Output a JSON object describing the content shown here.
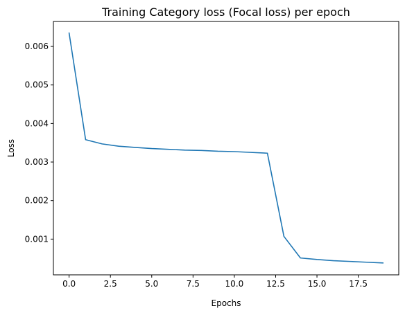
{
  "chart_data": {
    "type": "line",
    "title": "Training Category loss (Focal loss) per epoch",
    "xlabel": "Epochs",
    "ylabel": "Loss",
    "xlim": [
      -0.95,
      19.95
    ],
    "ylim": [
      7.2e-05,
      0.006648
    ],
    "xticks": [
      0.0,
      2.5,
      5.0,
      7.5,
      10.0,
      12.5,
      15.0,
      17.5
    ],
    "xtick_labels": [
      "0.0",
      "2.5",
      "5.0",
      "7.5",
      "10.0",
      "12.5",
      "15.0",
      "17.5"
    ],
    "yticks": [
      0.001,
      0.002,
      0.003,
      0.004,
      0.005,
      0.006
    ],
    "ytick_labels": [
      "0.001",
      "0.002",
      "0.003",
      "0.004",
      "0.005",
      "0.006"
    ],
    "grid": false,
    "series": [
      {
        "name": "Category loss",
        "color": "#1f77b4",
        "x": [
          0,
          1,
          2,
          3,
          4,
          5,
          6,
          7,
          8,
          9,
          10,
          11,
          12,
          13,
          14,
          15,
          16,
          17,
          18,
          19
        ],
        "values": [
          0.00635,
          0.00358,
          0.00347,
          0.00341,
          0.00338,
          0.00335,
          0.00333,
          0.00331,
          0.0033,
          0.00328,
          0.00327,
          0.00325,
          0.00323,
          0.00107,
          0.00051,
          0.00047,
          0.00044,
          0.00042,
          0.0004,
          0.00038
        ]
      }
    ]
  }
}
